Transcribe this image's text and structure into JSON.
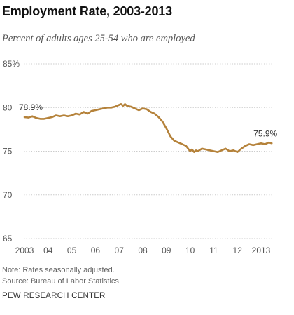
{
  "header": {
    "title": "Employment Rate, 2003-2013",
    "subtitle": "Percent of adults ages 25-54 who are employed"
  },
  "footer": {
    "note": "Note: Rates seasonally adjusted.",
    "source": "Source: Bureau of Labor Statistics",
    "organization": "PEW RESEARCH CENTER"
  },
  "colors": {
    "line": "#b5823a",
    "grid": "#cccccc",
    "axis_text": "#555555"
  },
  "chart_data": {
    "type": "line",
    "title": "Employment Rate, 2003-2013",
    "subtitle": "Percent of adults ages 25-54 who are employed",
    "ylim": [
      65,
      85
    ],
    "yticks": [
      {
        "value": 85,
        "label": "85%"
      },
      {
        "value": 80,
        "label": "80"
      },
      {
        "value": 75,
        "label": "75"
      },
      {
        "value": 70,
        "label": "70"
      },
      {
        "value": 65,
        "label": "65"
      }
    ],
    "xlim": [
      2003,
      2013.5
    ],
    "xticks": [
      {
        "value": 2003,
        "label": "2003"
      },
      {
        "value": 2004,
        "label": "04"
      },
      {
        "value": 2005,
        "label": "05"
      },
      {
        "value": 2006,
        "label": "06"
      },
      {
        "value": 2007,
        "label": "07"
      },
      {
        "value": 2008,
        "label": "08"
      },
      {
        "value": 2009,
        "label": "09"
      },
      {
        "value": 2010,
        "label": "10"
      },
      {
        "value": 2011,
        "label": "11"
      },
      {
        "value": 2012,
        "label": "12"
      },
      {
        "value": 2013,
        "label": "2013"
      }
    ],
    "grid": true,
    "series": [
      {
        "x": [
          2003.0,
          2003.17,
          2003.33,
          2003.5,
          2003.67,
          2003.83,
          2004.0,
          2004.17,
          2004.33,
          2004.5,
          2004.67,
          2004.83,
          2005.0,
          2005.17,
          2005.33,
          2005.5,
          2005.67,
          2005.83,
          2006.0,
          2006.17,
          2006.33,
          2006.5,
          2006.67,
          2006.83,
          2007.0,
          2007.08,
          2007.17,
          2007.25,
          2007.33,
          2007.5,
          2007.67,
          2007.83,
          2008.0,
          2008.17,
          2008.33,
          2008.5,
          2008.67,
          2008.83,
          2009.0,
          2009.17,
          2009.33,
          2009.5,
          2009.67,
          2009.83,
          2010.0,
          2010.08,
          2010.17,
          2010.25,
          2010.33,
          2010.5,
          2010.67,
          2010.83,
          2011.0,
          2011.17,
          2011.33,
          2011.5,
          2011.67,
          2011.83,
          2012.0,
          2012.17,
          2012.33,
          2012.5,
          2012.67,
          2012.83,
          2013.0,
          2013.17,
          2013.33,
          2013.45
        ],
        "values": [
          78.9,
          78.85,
          79.0,
          78.8,
          78.7,
          78.7,
          78.8,
          78.9,
          79.1,
          79.0,
          79.1,
          79.0,
          79.1,
          79.3,
          79.2,
          79.5,
          79.3,
          79.6,
          79.7,
          79.8,
          79.9,
          80.0,
          80.0,
          80.1,
          80.3,
          80.4,
          80.2,
          80.4,
          80.2,
          80.1,
          79.9,
          79.7,
          79.9,
          79.8,
          79.5,
          79.3,
          78.9,
          78.4,
          77.6,
          76.7,
          76.2,
          76.0,
          75.8,
          75.6,
          75.0,
          75.2,
          74.9,
          75.1,
          75.0,
          75.3,
          75.2,
          75.1,
          75.0,
          74.9,
          75.1,
          75.3,
          75.0,
          75.1,
          74.9,
          75.3,
          75.6,
          75.8,
          75.7,
          75.8,
          75.9,
          75.8,
          76.0,
          75.9
        ]
      }
    ],
    "annotations": [
      {
        "x": 2003.0,
        "y": 78.9,
        "label": "78.9%",
        "position": "above"
      },
      {
        "x": 2013.45,
        "y": 75.9,
        "label": "75.9%",
        "position": "above"
      }
    ]
  }
}
